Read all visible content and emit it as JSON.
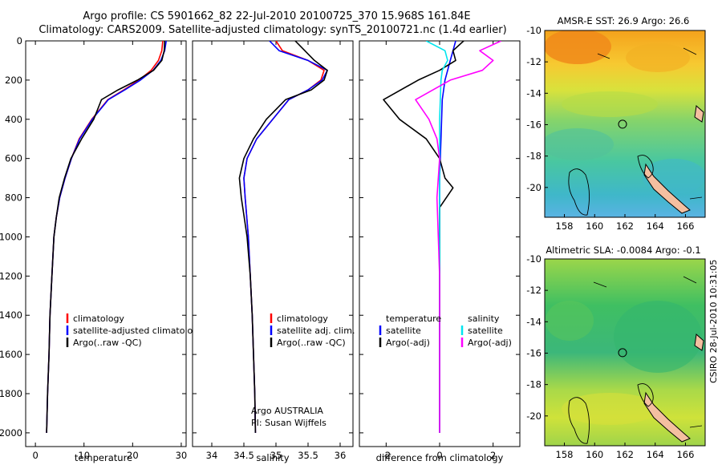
{
  "header": {
    "title_line1": "Argo profile: CS 5901662_82 22-Jul-2010 20100725_370 15.968S 161.84E",
    "title_line2": "Climatology: CARS2009. Satellite-adjusted climatology: synTS_20100721.nc (1.4d earlier)"
  },
  "side_text": "CSIRO 28-Jul-2010 10:31:05",
  "colors": {
    "climatology": "#ff0000",
    "satellite": "#0000ff",
    "argo": "#000000",
    "temp_satellite": "#0000ff",
    "sal_satellite": "#00e5ee",
    "sal_argo": "#ff00ff"
  },
  "chart_data": [
    {
      "type": "line",
      "id": "temperature",
      "xlabel": "temperature",
      "ylabel": "",
      "xlim": [
        -2,
        31
      ],
      "ylim": [
        2070,
        0
      ],
      "xticks": [
        "0",
        "10",
        "20",
        "30"
      ],
      "yticks": [
        "0",
        "200",
        "400",
        "600",
        "800",
        "1000",
        "1200",
        "1400",
        "1600",
        "1800",
        "2000"
      ],
      "legend": [
        "climatology",
        "satellite-adjusted climatology",
        "Argo(..raw -QC)"
      ],
      "series": [
        {
          "name": "climatology",
          "color": "#ff0000",
          "x": [
            26.2,
            26.0,
            25.3,
            23.8,
            21.3,
            18.2,
            14.9,
            11.6,
            9.0,
            7.4,
            6.1,
            5.0,
            4.3,
            3.8,
            3.4,
            3.0,
            2.8,
            2.5,
            2.3
          ],
          "y": [
            0,
            50,
            100,
            150,
            200,
            250,
            300,
            400,
            500,
            600,
            700,
            800,
            900,
            1000,
            1200,
            1400,
            1600,
            1800,
            2000
          ]
        },
        {
          "name": "satellite-adjusted climatology",
          "color": "#0000ff",
          "x": [
            26.9,
            26.6,
            25.8,
            24.2,
            21.6,
            18.4,
            15.0,
            11.7,
            9.1,
            7.4,
            6.1,
            5.0,
            4.3,
            3.8,
            3.4,
            3.0,
            2.8,
            2.5,
            2.3
          ],
          "y": [
            0,
            50,
            100,
            150,
            200,
            250,
            300,
            400,
            500,
            600,
            700,
            800,
            900,
            1000,
            1200,
            1400,
            1600,
            1800,
            2000
          ]
        },
        {
          "name": "Argo(..raw -QC)",
          "color": "#000000",
          "x": [
            26.6,
            26.5,
            26.0,
            24.3,
            21.0,
            17.0,
            13.6,
            12.0,
            9.5,
            7.3,
            6.0,
            4.9,
            4.3,
            3.8,
            3.4,
            3.0,
            2.8,
            2.5,
            2.3
          ],
          "y": [
            0,
            50,
            100,
            150,
            200,
            250,
            300,
            400,
            500,
            600,
            700,
            800,
            900,
            1000,
            1200,
            1400,
            1600,
            1800,
            2000
          ]
        }
      ]
    },
    {
      "type": "line",
      "id": "salinity",
      "xlabel": "salinity",
      "xlim": [
        33.7,
        36.2
      ],
      "ylim": [
        2070,
        0
      ],
      "xticks": [
        "34",
        "34.5",
        "35",
        "35.5",
        "36"
      ],
      "legend": [
        "climatology",
        "satellite adj. clim.",
        "Argo(..raw -QC)"
      ],
      "annotation": [
        "Argo AUSTRALIA",
        "PI: Susan Wijffels"
      ],
      "series": [
        {
          "name": "climatology",
          "color": "#ff0000",
          "x": [
            35.0,
            35.1,
            35.5,
            35.75,
            35.7,
            35.5,
            35.2,
            34.95,
            34.7,
            34.55,
            34.5,
            34.52,
            34.57,
            34.6,
            34.63,
            34.65,
            34.67,
            34.68
          ],
          "y": [
            0,
            50,
            100,
            150,
            200,
            250,
            300,
            400,
            500,
            600,
            700,
            800,
            1000,
            1200,
            1400,
            1600,
            1800,
            2000
          ]
        },
        {
          "name": "satellite adj. clim.",
          "color": "#0000ff",
          "x": [
            34.9,
            35.05,
            35.5,
            35.8,
            35.72,
            35.5,
            35.2,
            34.95,
            34.7,
            34.55,
            34.5,
            34.52,
            34.57,
            34.6,
            34.63,
            34.65,
            34.67,
            34.68
          ],
          "y": [
            0,
            50,
            100,
            150,
            200,
            250,
            300,
            400,
            500,
            600,
            700,
            800,
            1000,
            1200,
            1400,
            1600,
            1800,
            2000
          ]
        },
        {
          "name": "Argo(..raw -QC)",
          "color": "#000000",
          "x": [
            35.3,
            35.45,
            35.6,
            35.8,
            35.75,
            35.55,
            35.15,
            34.85,
            34.65,
            34.5,
            34.43,
            34.46,
            34.55,
            34.6,
            34.63,
            34.65,
            34.67,
            34.68
          ],
          "y": [
            0,
            50,
            100,
            150,
            200,
            250,
            300,
            400,
            500,
            600,
            700,
            800,
            1000,
            1200,
            1400,
            1600,
            1800,
            2000
          ]
        }
      ]
    },
    {
      "type": "line",
      "id": "difference",
      "xlabel": "difference from climatology",
      "xlim": [
        -3,
        3
      ],
      "ylim": [
        2070,
        0
      ],
      "xticks": [
        "-2",
        "0",
        "2"
      ],
      "legend_temperature": [
        "temperature",
        "satellite",
        "Argo(-adj)"
      ],
      "legend_salinity": [
        "salinity",
        "satellite",
        "Argo(-adj)"
      ],
      "series": [
        {
          "name": "temperature satellite",
          "color": "#0000ff",
          "x": [
            0.6,
            0.5,
            0.4,
            0.3,
            0.2,
            0.1,
            0.05,
            0.0,
            0.0,
            0.0,
            0.0
          ],
          "y": [
            0,
            50,
            100,
            150,
            200,
            300,
            500,
            700,
            1000,
            1500,
            2000
          ]
        },
        {
          "name": "temperature Argo(-adj)",
          "color": "#000000",
          "x": [
            0.9,
            0.5,
            0.6,
            0.0,
            -0.8,
            -2.1,
            -1.5,
            -0.5,
            0.0,
            0.2,
            0.5,
            0.0,
            0.0,
            0.0
          ],
          "y": [
            0,
            50,
            100,
            150,
            200,
            300,
            400,
            500,
            600,
            700,
            750,
            850,
            1200,
            2000
          ]
        },
        {
          "name": "salinity satellite",
          "color": "#00e5ee",
          "x": [
            -0.5,
            0.2,
            0.3,
            0.1,
            0.05,
            0.0,
            0.0,
            0.0,
            0.0
          ],
          "y": [
            0,
            50,
            100,
            150,
            200,
            400,
            800,
            1200,
            2000
          ]
        },
        {
          "name": "salinity Argo(-adj)",
          "color": "#ff00ff",
          "x": [
            2.3,
            1.5,
            2.0,
            1.6,
            0.4,
            -0.9,
            -0.4,
            -0.1,
            0.0,
            -0.1,
            0.0,
            0.0
          ],
          "y": [
            0,
            50,
            100,
            150,
            200,
            300,
            400,
            500,
            600,
            800,
            1200,
            2000
          ]
        }
      ]
    },
    {
      "type": "heatmap",
      "id": "sst_map",
      "title": "AMSR-E SST: 26.9 Argo: 26.6",
      "xticks": [
        "158",
        "160",
        "162",
        "164",
        "166"
      ],
      "yticks": [
        "-10",
        "-12",
        "-14",
        "-16",
        "-18",
        "-20"
      ],
      "xlim": [
        156.7,
        167.3
      ],
      "ylim": [
        -21.9,
        -10
      ],
      "marker": {
        "lon": 161.84,
        "lat": -15.968
      }
    },
    {
      "type": "heatmap",
      "id": "sla_map",
      "title": "Altimetric SLA: -0.0084 Argo: -0.1",
      "xticks": [
        "158",
        "160",
        "162",
        "164",
        "166"
      ],
      "yticks": [
        "-10",
        "-12",
        "-14",
        "-16",
        "-18",
        "-20"
      ],
      "xlim": [
        156.7,
        167.3
      ],
      "ylim": [
        -21.9,
        -10
      ],
      "marker": {
        "lon": 161.84,
        "lat": -15.968
      }
    }
  ]
}
